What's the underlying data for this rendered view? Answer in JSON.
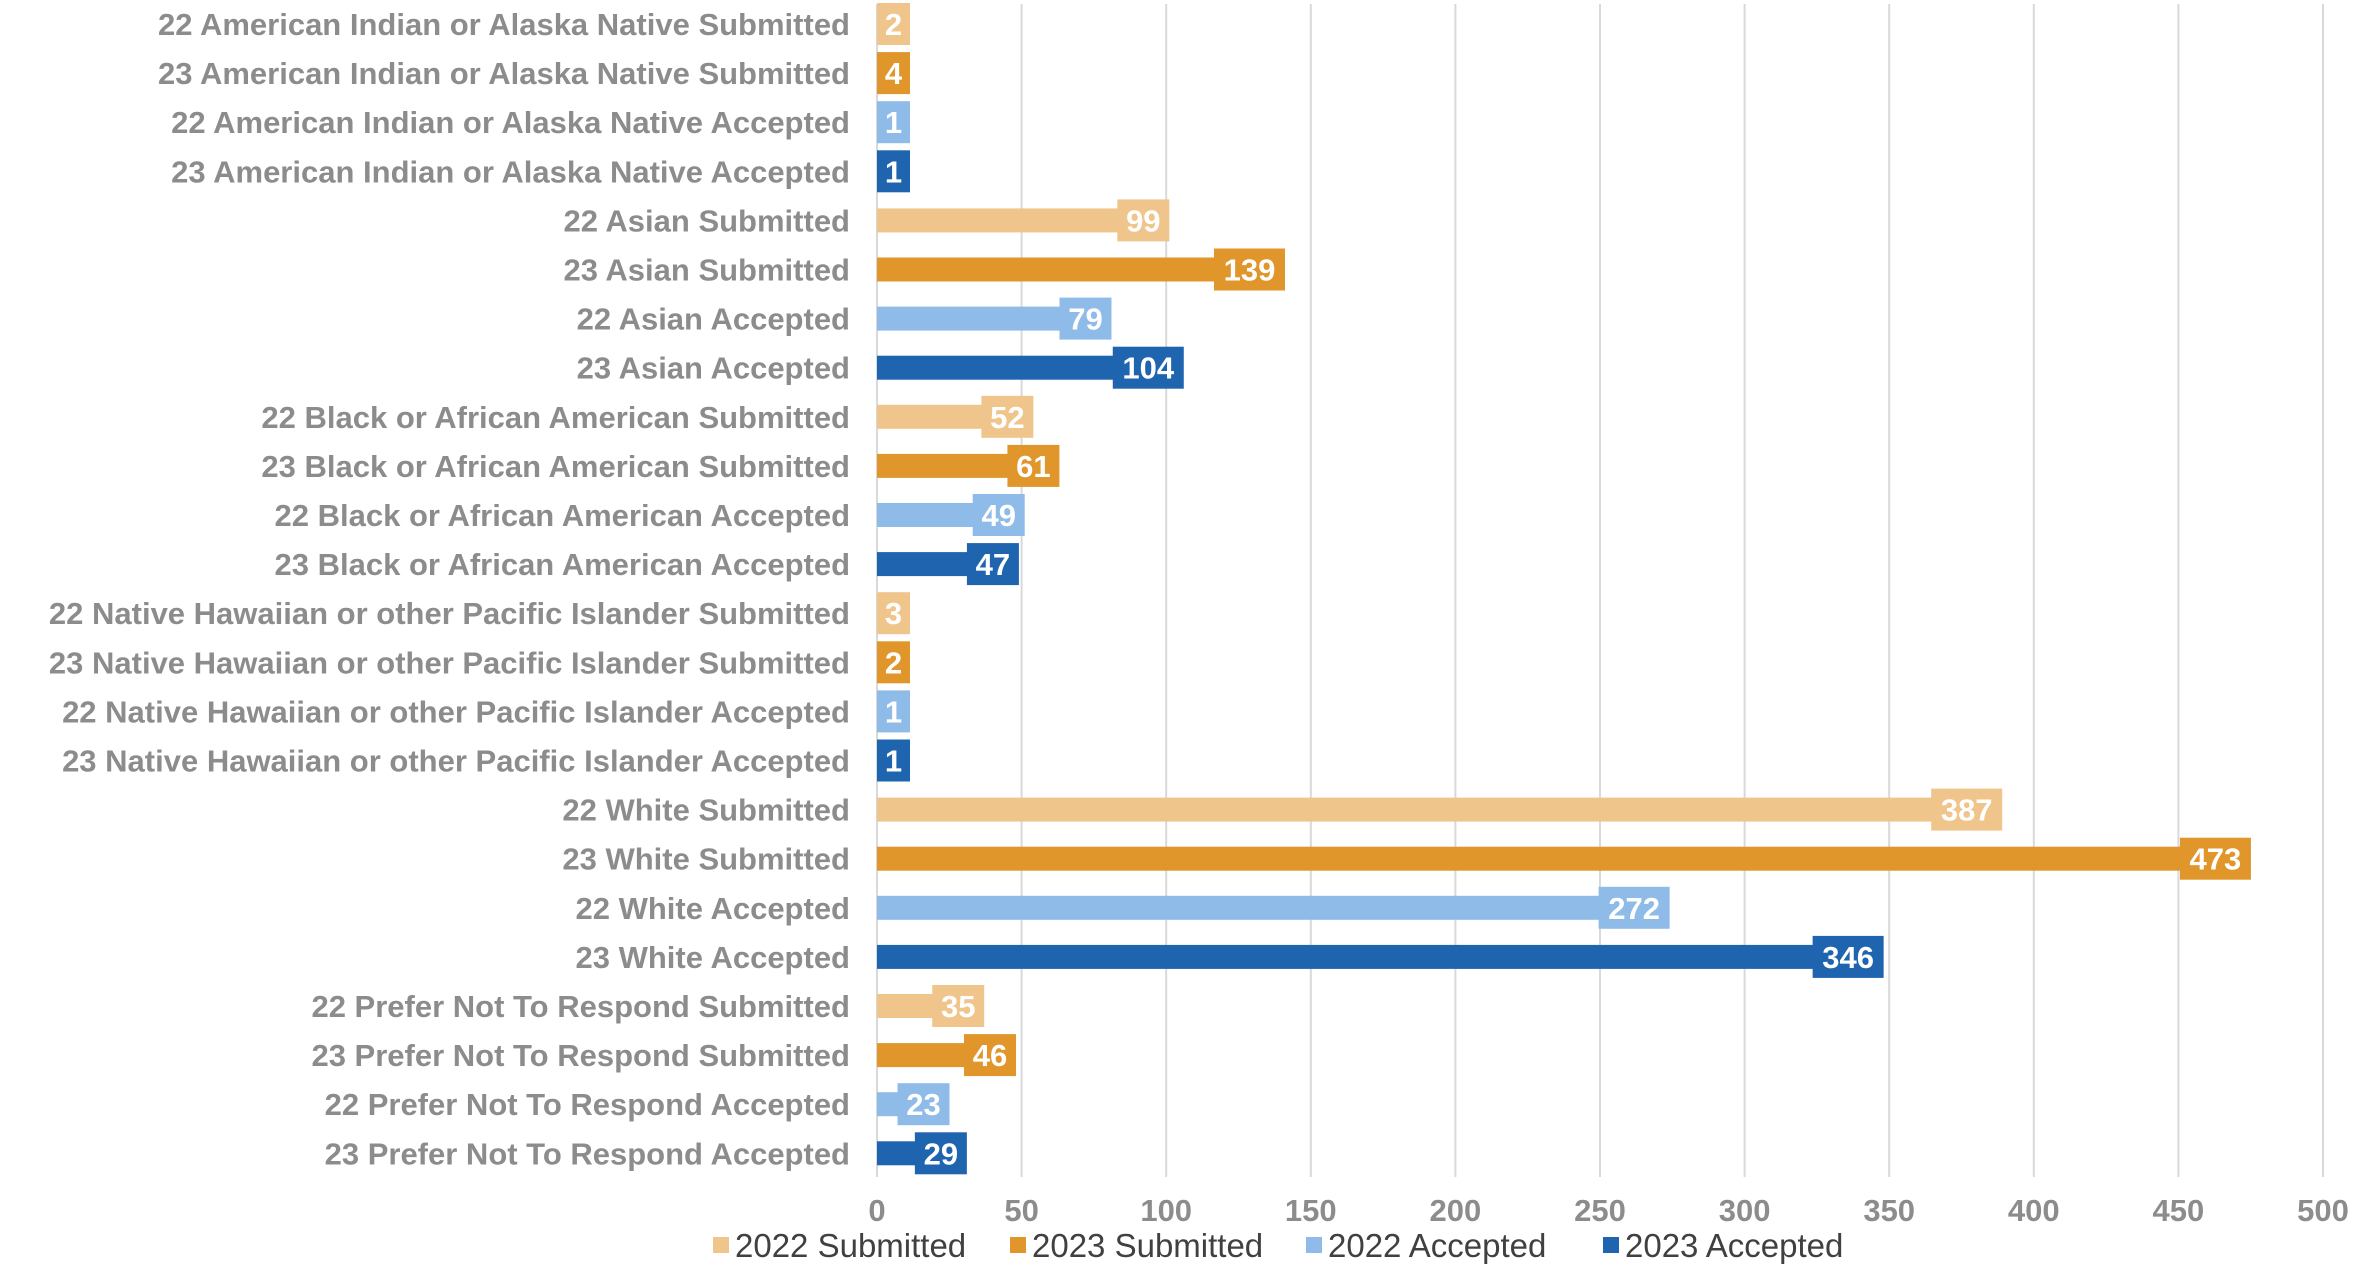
{
  "chart_data": {
    "type": "bar",
    "orientation": "horizontal",
    "categories": [
      "22 American Indian or Alaska Native Submitted",
      "23 American Indian or Alaska Native Submitted",
      "22 American Indian or Alaska Native Accepted",
      "23 American Indian or Alaska Native Accepted",
      "22 Asian Submitted",
      "23 Asian Submitted",
      "22 Asian Accepted",
      "23 Asian Accepted",
      "22 Black or African American Submitted",
      "23 Black or African American Submitted",
      "22 Black or African American Accepted",
      "23 Black or African American Accepted",
      "22 Native Hawaiian or other Pacific Islander Submitted",
      "23 Native Hawaiian or other Pacific Islander Submitted",
      "22 Native Hawaiian or other Pacific Islander Accepted",
      "23 Native Hawaiian or other Pacific Islander Accepted",
      "22 White Submitted",
      "23 White Submitted",
      "22 White Accepted",
      "23 White Accepted",
      "22 Prefer Not To Respond Submitted",
      "23 Prefer Not To Respond Submitted",
      "22 Prefer Not To Respond Accepted",
      "23 Prefer Not To Respond Accepted"
    ],
    "values": [
      2,
      4,
      1,
      1,
      99,
      139,
      79,
      104,
      52,
      61,
      49,
      47,
      3,
      2,
      1,
      1,
      387,
      473,
      272,
      346,
      35,
      46,
      23,
      29
    ],
    "series_index": [
      0,
      1,
      2,
      3,
      0,
      1,
      2,
      3,
      0,
      1,
      2,
      3,
      0,
      1,
      2,
      3,
      0,
      1,
      2,
      3,
      0,
      1,
      2,
      3
    ],
    "series": [
      {
        "name": "2022 Submitted",
        "color": "#f0c58c"
      },
      {
        "name": "2023 Submitted",
        "color": "#e0962a"
      },
      {
        "name": "2022 Accepted",
        "color": "#8fbbe8"
      },
      {
        "name": "2023 Accepted",
        "color": "#1f64ae"
      }
    ],
    "xlim": [
      0,
      500
    ],
    "xticks": [
      0,
      50,
      100,
      150,
      200,
      250,
      300,
      350,
      400,
      450,
      500
    ],
    "grid": "vertical",
    "legend_position": "bottom",
    "title": "",
    "xlabel": "",
    "ylabel": ""
  }
}
